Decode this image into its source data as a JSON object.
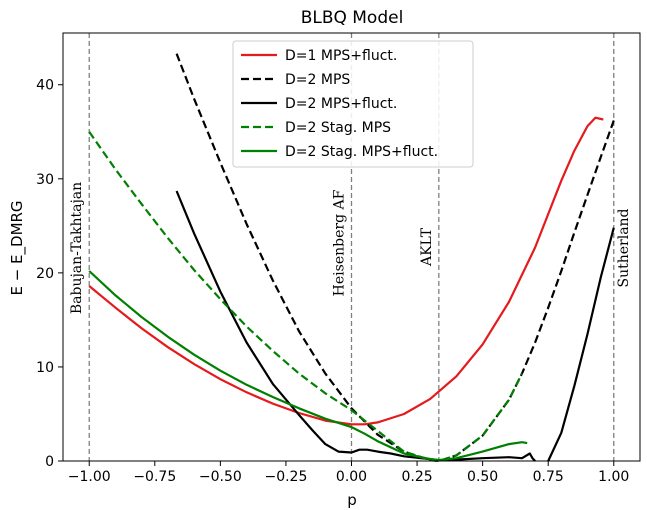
{
  "chart_data": {
    "type": "line",
    "title": "BLBQ Model",
    "xlabel": "p",
    "ylabel": "E − E_DMRG",
    "xlim": [
      -1.1,
      1.1
    ],
    "ylim": [
      0,
      45.5
    ],
    "xticks": [
      -1.0,
      -0.75,
      -0.5,
      -0.25,
      0.0,
      0.25,
      0.5,
      0.75,
      1.0
    ],
    "xtick_labels": [
      "−1.00",
      "−0.75",
      "−0.50",
      "−0.25",
      "0.00",
      "0.25",
      "0.50",
      "0.75",
      "1.00"
    ],
    "yticks": [
      0,
      10,
      20,
      30,
      40
    ],
    "ytick_labels": [
      "0",
      "10",
      "20",
      "30",
      "40"
    ],
    "grid": false,
    "legend_position": "top-center",
    "vertical_lines": [
      {
        "x": -1.0,
        "label": "Babujan-Takhtajan"
      },
      {
        "x": 0.0,
        "label": "Heisenberg AF"
      },
      {
        "x": 0.333,
        "label": "AKLT"
      },
      {
        "x": 1.0,
        "label": "Sutherland"
      }
    ],
    "series": [
      {
        "name": "D=1 MPS+fluct.",
        "color": "#e41a1c",
        "style": "solid",
        "x": [
          -1.0,
          -0.9,
          -0.8,
          -0.7,
          -0.6,
          -0.5,
          -0.4,
          -0.3,
          -0.2,
          -0.1,
          0.0,
          0.05,
          0.1,
          0.2,
          0.3,
          0.4,
          0.5,
          0.6,
          0.7,
          0.8,
          0.85,
          0.9,
          0.93,
          0.96
        ],
        "y": [
          18.6,
          16.3,
          14.1,
          12.1,
          10.3,
          8.7,
          7.3,
          6.1,
          5.1,
          4.3,
          3.9,
          3.9,
          4.1,
          5.0,
          6.6,
          9.0,
          12.4,
          16.9,
          22.7,
          29.8,
          33.0,
          35.6,
          36.5,
          36.3
        ]
      },
      {
        "name": "D=2 MPS",
        "color": "#000000",
        "style": "dashed",
        "x": [
          -0.667,
          -0.6,
          -0.5,
          -0.4,
          -0.3,
          -0.2,
          -0.1,
          0.0,
          0.1,
          0.2,
          0.3,
          0.333,
          0.4,
          0.5,
          0.6,
          0.65,
          0.7,
          0.75,
          0.8,
          0.85,
          0.9,
          0.95,
          1.0
        ],
        "y": [
          43.3,
          38.5,
          31.7,
          25.2,
          19.2,
          13.8,
          9.3,
          5.6,
          2.8,
          1.0,
          0.1,
          0.0,
          0.6,
          2.7,
          6.5,
          9.3,
          12.6,
          16.3,
          20.2,
          24.3,
          28.3,
          32.3,
          36.2
        ]
      },
      {
        "name": "D=2 MPS+fluct.",
        "color": "#000000",
        "style": "solid",
        "x": [
          -0.667,
          -0.6,
          -0.5,
          -0.4,
          -0.3,
          -0.2,
          -0.15,
          -0.1,
          -0.05,
          0.0,
          0.03,
          0.06,
          0.1,
          0.15,
          0.2,
          0.3,
          0.333,
          0.4,
          0.5,
          0.6,
          0.65,
          0.68,
          0.69,
          0.7,
          null,
          0.75,
          0.8,
          0.85,
          0.9,
          0.95,
          1.0
        ],
        "y": [
          28.7,
          24.2,
          18.0,
          12.6,
          8.2,
          4.9,
          3.3,
          1.8,
          1.0,
          0.9,
          1.2,
          1.2,
          1.0,
          0.8,
          0.5,
          0.2,
          0.1,
          0.15,
          0.3,
          0.4,
          0.3,
          0.8,
          0.3,
          0.0,
          null,
          0.0,
          3.0,
          8.0,
          13.5,
          19.5,
          24.8
        ]
      },
      {
        "name": "D=2 Stag. MPS",
        "color": "#008000",
        "style": "dashed",
        "x": [
          -1.0,
          -0.9,
          -0.8,
          -0.7,
          -0.6,
          -0.5,
          -0.4,
          -0.3,
          -0.2,
          -0.1,
          0.0,
          0.1,
          0.2,
          0.3,
          0.333,
          0.4,
          0.5,
          0.6,
          0.65
        ],
        "y": [
          35.0,
          31.0,
          27.3,
          23.7,
          20.3,
          17.2,
          14.3,
          11.7,
          9.3,
          7.2,
          5.4,
          3.2,
          1.0,
          0.1,
          0.0,
          0.6,
          2.7,
          6.5,
          9.3
        ]
      },
      {
        "name": "D=2 Stag. MPS+fluct.",
        "color": "#008000",
        "style": "solid",
        "x": [
          -1.0,
          -0.9,
          -0.8,
          -0.7,
          -0.6,
          -0.5,
          -0.4,
          -0.3,
          -0.2,
          -0.1,
          0.0,
          0.05,
          0.1,
          0.2,
          0.3,
          0.333,
          0.4,
          0.5,
          0.55,
          0.6,
          0.65,
          0.67
        ],
        "y": [
          20.2,
          17.6,
          15.3,
          13.2,
          11.3,
          9.6,
          8.1,
          6.8,
          5.6,
          4.5,
          3.6,
          2.9,
          2.1,
          0.8,
          0.2,
          0.1,
          0.3,
          1.0,
          1.4,
          1.8,
          2.0,
          1.9
        ]
      }
    ]
  }
}
